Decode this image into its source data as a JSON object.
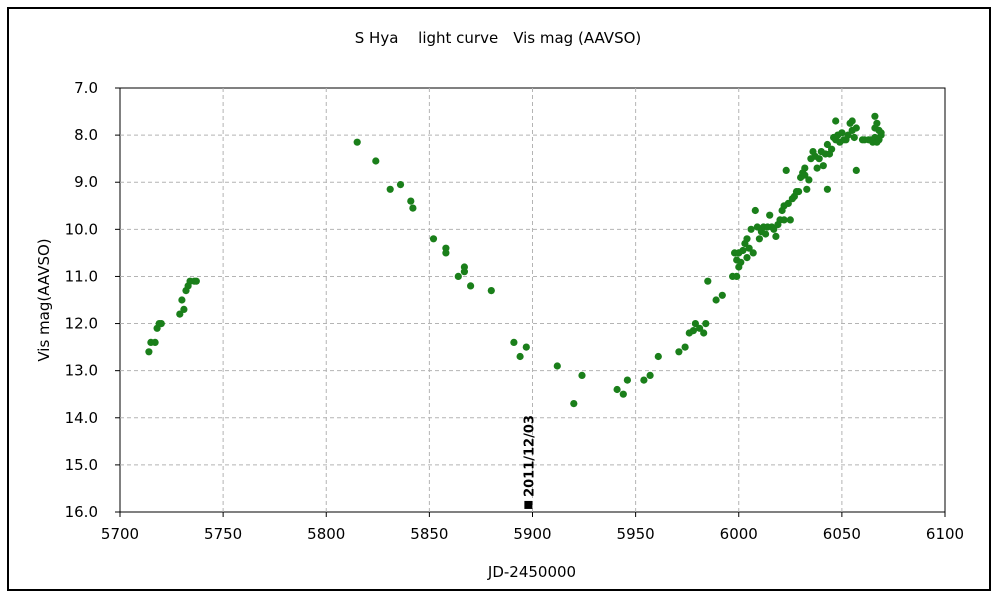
{
  "chart_data": {
    "type": "scatter",
    "title": "S Hya　 light curve　Vis mag (AAVSO)",
    "xlabel": "JD-2450000",
    "ylabel": "Vis mag(AAVSO)",
    "xlim": [
      5700,
      6100
    ],
    "ylim": [
      7.0,
      16.0
    ],
    "y_inverted": true,
    "grid": true,
    "x_ticks": [
      "5700",
      "5750",
      "5800",
      "5850",
      "5900",
      "5950",
      "6000",
      "6050",
      "6100"
    ],
    "y_ticks": [
      "7.0",
      "8.0",
      "9.0",
      "10.0",
      "11.0",
      "12.0",
      "13.0",
      "14.0",
      "15.0",
      "16.0"
    ],
    "colors": {
      "series": "#1a7f1a",
      "marker": "#000000",
      "grid": "#b4b4b4"
    },
    "annotation": {
      "text": "2011/12/03",
      "x": 5898,
      "y": 15.85
    },
    "series": [
      {
        "points": [
          [
            5714,
            12.6
          ],
          [
            5715,
            12.4
          ],
          [
            5717,
            12.4
          ],
          [
            5718,
            12.1
          ],
          [
            5719,
            12.0
          ],
          [
            5720,
            12.0
          ],
          [
            5729,
            11.8
          ],
          [
            5730,
            11.5
          ],
          [
            5731,
            11.7
          ],
          [
            5732,
            11.3
          ],
          [
            5733,
            11.2
          ],
          [
            5734,
            11.1
          ],
          [
            5736,
            11.1
          ],
          [
            5737,
            11.1
          ],
          [
            5815,
            8.15
          ],
          [
            5824,
            8.55
          ],
          [
            5831,
            9.15
          ],
          [
            5836,
            9.05
          ],
          [
            5841,
            9.4
          ],
          [
            5842,
            9.55
          ],
          [
            5852,
            10.2
          ],
          [
            5858,
            10.4
          ],
          [
            5858,
            10.5
          ],
          [
            5864,
            11.0
          ],
          [
            5867,
            10.9
          ],
          [
            5867,
            10.8
          ],
          [
            5870,
            11.2
          ],
          [
            5880,
            11.3
          ],
          [
            5891,
            12.4
          ],
          [
            5894,
            12.7
          ],
          [
            5897,
            12.5
          ],
          [
            5912,
            12.9
          ],
          [
            5920,
            13.7
          ],
          [
            5924,
            13.1
          ],
          [
            5941,
            13.4
          ],
          [
            5944,
            13.5
          ],
          [
            5946,
            13.2
          ],
          [
            5954,
            13.2
          ],
          [
            5957,
            13.1
          ],
          [
            5961,
            12.7
          ],
          [
            5971,
            12.6
          ],
          [
            5974,
            12.5
          ],
          [
            5976,
            12.2
          ],
          [
            5978,
            12.15
          ],
          [
            5979,
            12.0
          ],
          [
            5981,
            12.1
          ],
          [
            5983,
            12.2
          ],
          [
            5984,
            12.0
          ],
          [
            5985,
            11.1
          ],
          [
            5989,
            11.5
          ],
          [
            5992,
            11.4
          ],
          [
            5997,
            11.0
          ],
          [
            5998,
            10.5
          ],
          [
            5999,
            11.0
          ],
          [
            5999,
            10.65
          ],
          [
            6000,
            10.5
          ],
          [
            6000,
            10.8
          ],
          [
            6001,
            10.7
          ],
          [
            6002,
            10.45
          ],
          [
            6003,
            10.3
          ],
          [
            6004,
            10.6
          ],
          [
            6004,
            10.2
          ],
          [
            6005,
            10.4
          ],
          [
            6006,
            10.0
          ],
          [
            6007,
            10.5
          ],
          [
            6008,
            9.6
          ],
          [
            6009,
            9.95
          ],
          [
            6010,
            10.2
          ],
          [
            6011,
            10.05
          ],
          [
            6012,
            9.95
          ],
          [
            6013,
            10.1
          ],
          [
            6014,
            9.95
          ],
          [
            6015,
            9.7
          ],
          [
            6016,
            9.95
          ],
          [
            6017,
            10.0
          ],
          [
            6018,
            10.15
          ],
          [
            6019,
            9.9
          ],
          [
            6020,
            9.8
          ],
          [
            6021,
            9.6
          ],
          [
            6022,
            9.8
          ],
          [
            6022,
            9.5
          ],
          [
            6023,
            8.75
          ],
          [
            6024,
            9.45
          ],
          [
            6025,
            9.8
          ],
          [
            6026,
            9.35
          ],
          [
            6027,
            9.3
          ],
          [
            6028,
            9.2
          ],
          [
            6029,
            9.2
          ],
          [
            6030,
            8.9
          ],
          [
            6031,
            8.8
          ],
          [
            6032,
            8.85
          ],
          [
            6032,
            8.7
          ],
          [
            6033,
            9.15
          ],
          [
            6034,
            8.95
          ],
          [
            6035,
            8.5
          ],
          [
            6036,
            8.35
          ],
          [
            6037,
            8.45
          ],
          [
            6038,
            8.7
          ],
          [
            6039,
            8.5
          ],
          [
            6040,
            8.35
          ],
          [
            6041,
            8.65
          ],
          [
            6042,
            8.4
          ],
          [
            6043,
            8.2
          ],
          [
            6043,
            9.15
          ],
          [
            6044,
            8.4
          ],
          [
            6045,
            8.3
          ],
          [
            6046,
            8.05
          ],
          [
            6047,
            7.7
          ],
          [
            6047,
            8.1
          ],
          [
            6048,
            8.0
          ],
          [
            6049,
            8.15
          ],
          [
            6050,
            7.95
          ],
          [
            6051,
            8.1
          ],
          [
            6052,
            8.1
          ],
          [
            6053,
            8.0
          ],
          [
            6054,
            7.75
          ],
          [
            6055,
            7.9
          ],
          [
            6055,
            7.7
          ],
          [
            6056,
            8.05
          ],
          [
            6057,
            8.75
          ],
          [
            6057,
            7.85
          ],
          [
            6060,
            8.1
          ],
          [
            6061,
            8.1
          ],
          [
            6063,
            8.1
          ],
          [
            6064,
            8.1
          ],
          [
            6065,
            8.15
          ],
          [
            6066,
            7.6
          ],
          [
            6066,
            8.05
          ],
          [
            6066,
            7.85
          ],
          [
            6067,
            7.75
          ],
          [
            6067,
            8.15
          ],
          [
            6068,
            8.1
          ],
          [
            6068,
            7.9
          ],
          [
            6069,
            8.0
          ],
          [
            6069,
            7.95
          ]
        ]
      }
    ]
  }
}
